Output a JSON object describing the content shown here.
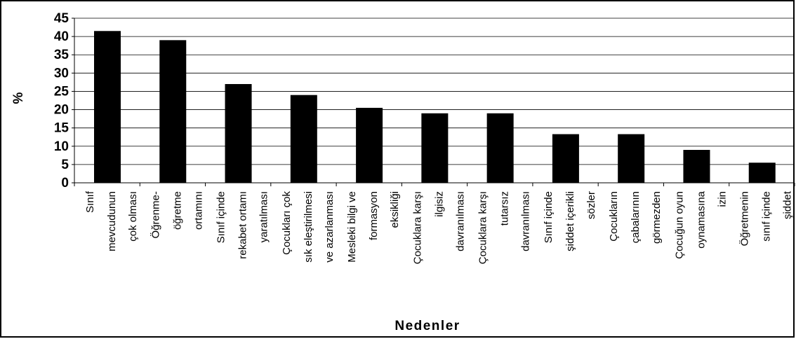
{
  "chart_data": {
    "type": "bar",
    "title": "",
    "xlabel": "Nedenler",
    "ylabel": "%",
    "ylim": [
      0,
      45
    ],
    "yticks": [
      0,
      5,
      10,
      15,
      20,
      25,
      30,
      35,
      40,
      45
    ],
    "grid": true,
    "legend": "none",
    "bar_color": "#000000",
    "categories": [
      [
        "Sınıf",
        "mevcudunun",
        "çok olması"
      ],
      [
        "Öğrenme-",
        "öğretme",
        "ortamını"
      ],
      [
        "Sınıf içinde",
        "rekabet ortamı",
        "yaratılması"
      ],
      [
        "Çocukları çok",
        "sık eleştirilmesi",
        "ve azarlanması"
      ],
      [
        "Mesleki bilgi ve",
        "formasyon",
        "eksikliği"
      ],
      [
        "Çocuklara karşı",
        "ilgisiz",
        "davranılması"
      ],
      [
        "Çocuklara karşı",
        "tutarsız",
        "davranılması"
      ],
      [
        "Sınıf içinde",
        "şiddet içerikli",
        "sözler"
      ],
      [
        "Çocukların",
        "çabalarının",
        "görmezden"
      ],
      [
        "Çocuğun oyun",
        "oynamasına",
        "izin"
      ],
      [
        "Öğretmenin",
        "sınıf içinde",
        "şiddet"
      ]
    ],
    "values": [
      41.5,
      39,
      27,
      24,
      20.5,
      19,
      19,
      13.3,
      13.3,
      9,
      5.5
    ]
  }
}
